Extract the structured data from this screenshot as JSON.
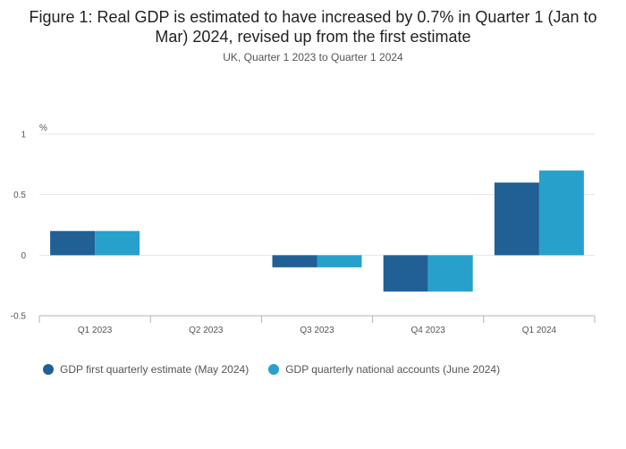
{
  "chart_data": {
    "type": "bar",
    "title": "Figure 1: Real GDP is estimated to have increased by 0.7% in Quarter 1 (Jan to Mar) 2024, revised up from the first estimate",
    "subtitle": "UK, Quarter 1 2023 to Quarter 1 2024",
    "ylabel": "%",
    "ylim": [
      -0.5,
      1
    ],
    "yticks": [
      1,
      0.5,
      0,
      -0.5
    ],
    "ytick_labels": [
      "1",
      "0.5",
      "0",
      "-0.5"
    ],
    "categories": [
      "Q1 2023",
      "Q2 2023",
      "Q3 2023",
      "Q4 2023",
      "Q1 2024"
    ],
    "series": [
      {
        "name": "GDP first quarterly estimate (May 2024)",
        "color": "#206095",
        "values": [
          0.2,
          0.0,
          -0.1,
          -0.3,
          0.6
        ]
      },
      {
        "name": "GDP quarterly national accounts (June 2024)",
        "color": "#27a0cc",
        "values": [
          0.2,
          0.0,
          -0.1,
          -0.3,
          0.7
        ]
      }
    ],
    "legend_position": "bottom-left",
    "grid": true
  }
}
